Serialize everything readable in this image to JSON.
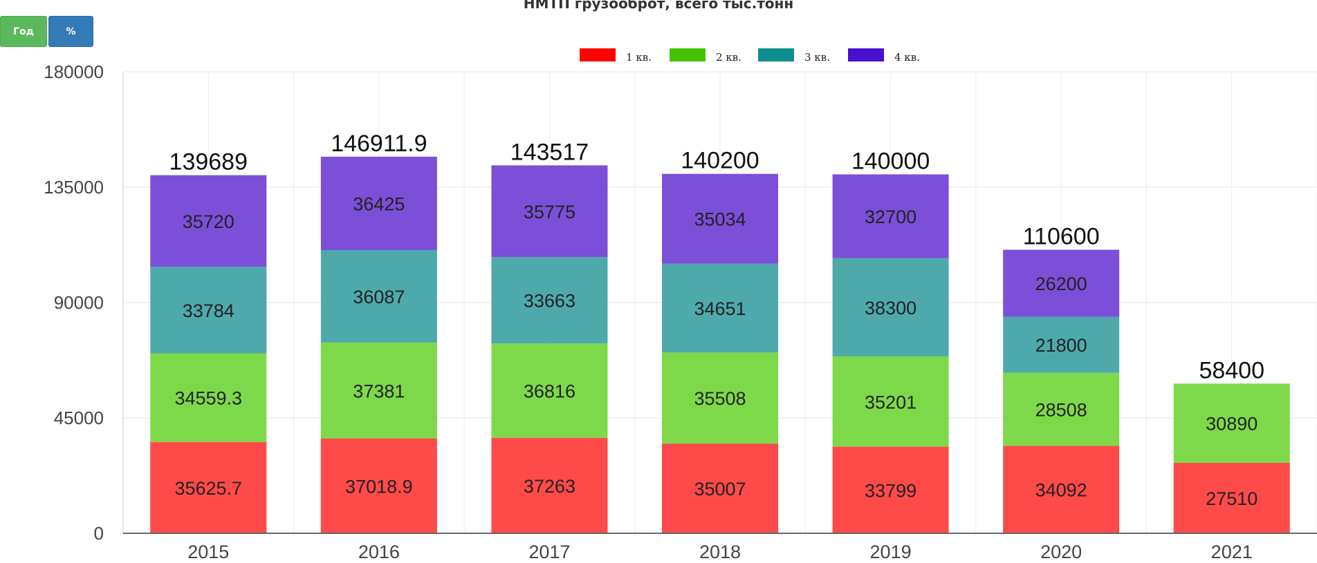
{
  "toolbar": {
    "year_label": "Год",
    "percent_label": "%"
  },
  "chart_data": {
    "type": "bar",
    "stacked": true,
    "title": "НМТП грузооброт, всего тыс.тонн",
    "categories": [
      "2015",
      "2016",
      "2017",
      "2018",
      "2019",
      "2020",
      "2021"
    ],
    "ylim": [
      0,
      180000
    ],
    "yticks": [
      "0",
      "45000",
      "90000",
      "135000",
      "180000"
    ],
    "grid": true,
    "legend_position": "top-center",
    "series": [
      {
        "name": "1 кв.",
        "color": "#ff4a4a",
        "values": [
          35625.7,
          37018.9,
          37263,
          35007,
          33799,
          34092,
          27510
        ],
        "labels": [
          "35625.7",
          "37018.9",
          "37263",
          "35007",
          "33799",
          "34092",
          "27510"
        ]
      },
      {
        "name": "2 кв.",
        "color": "#7dd94a",
        "values": [
          34559.3,
          37381,
          36816,
          35508,
          35201,
          28508,
          30890
        ],
        "labels": [
          "34559.3",
          "37381",
          "36816",
          "35508",
          "35201",
          "28508",
          "30890"
        ]
      },
      {
        "name": "3 кв.",
        "color": "#4ea9ab",
        "values": [
          33784,
          36087,
          33663,
          34651,
          38300,
          21800,
          null
        ],
        "labels": [
          "33784",
          "36087",
          "33663",
          "34651",
          "38300",
          "21800",
          ""
        ]
      },
      {
        "name": "4 кв.",
        "color": "#7b4fd8",
        "values": [
          35720,
          36425,
          35775,
          35034,
          32700,
          26200,
          null
        ],
        "labels": [
          "35720",
          "36425",
          "35775",
          "35034",
          "32700",
          "26200",
          ""
        ]
      }
    ],
    "totals": [
      "139689",
      "146911.9",
      "143517",
      "140200",
      "140000",
      "110600",
      "58400"
    ],
    "legend_swatch_colors": [
      "#ff0000",
      "#44c100",
      "#0e8d8d",
      "#4a0fcf"
    ]
  }
}
